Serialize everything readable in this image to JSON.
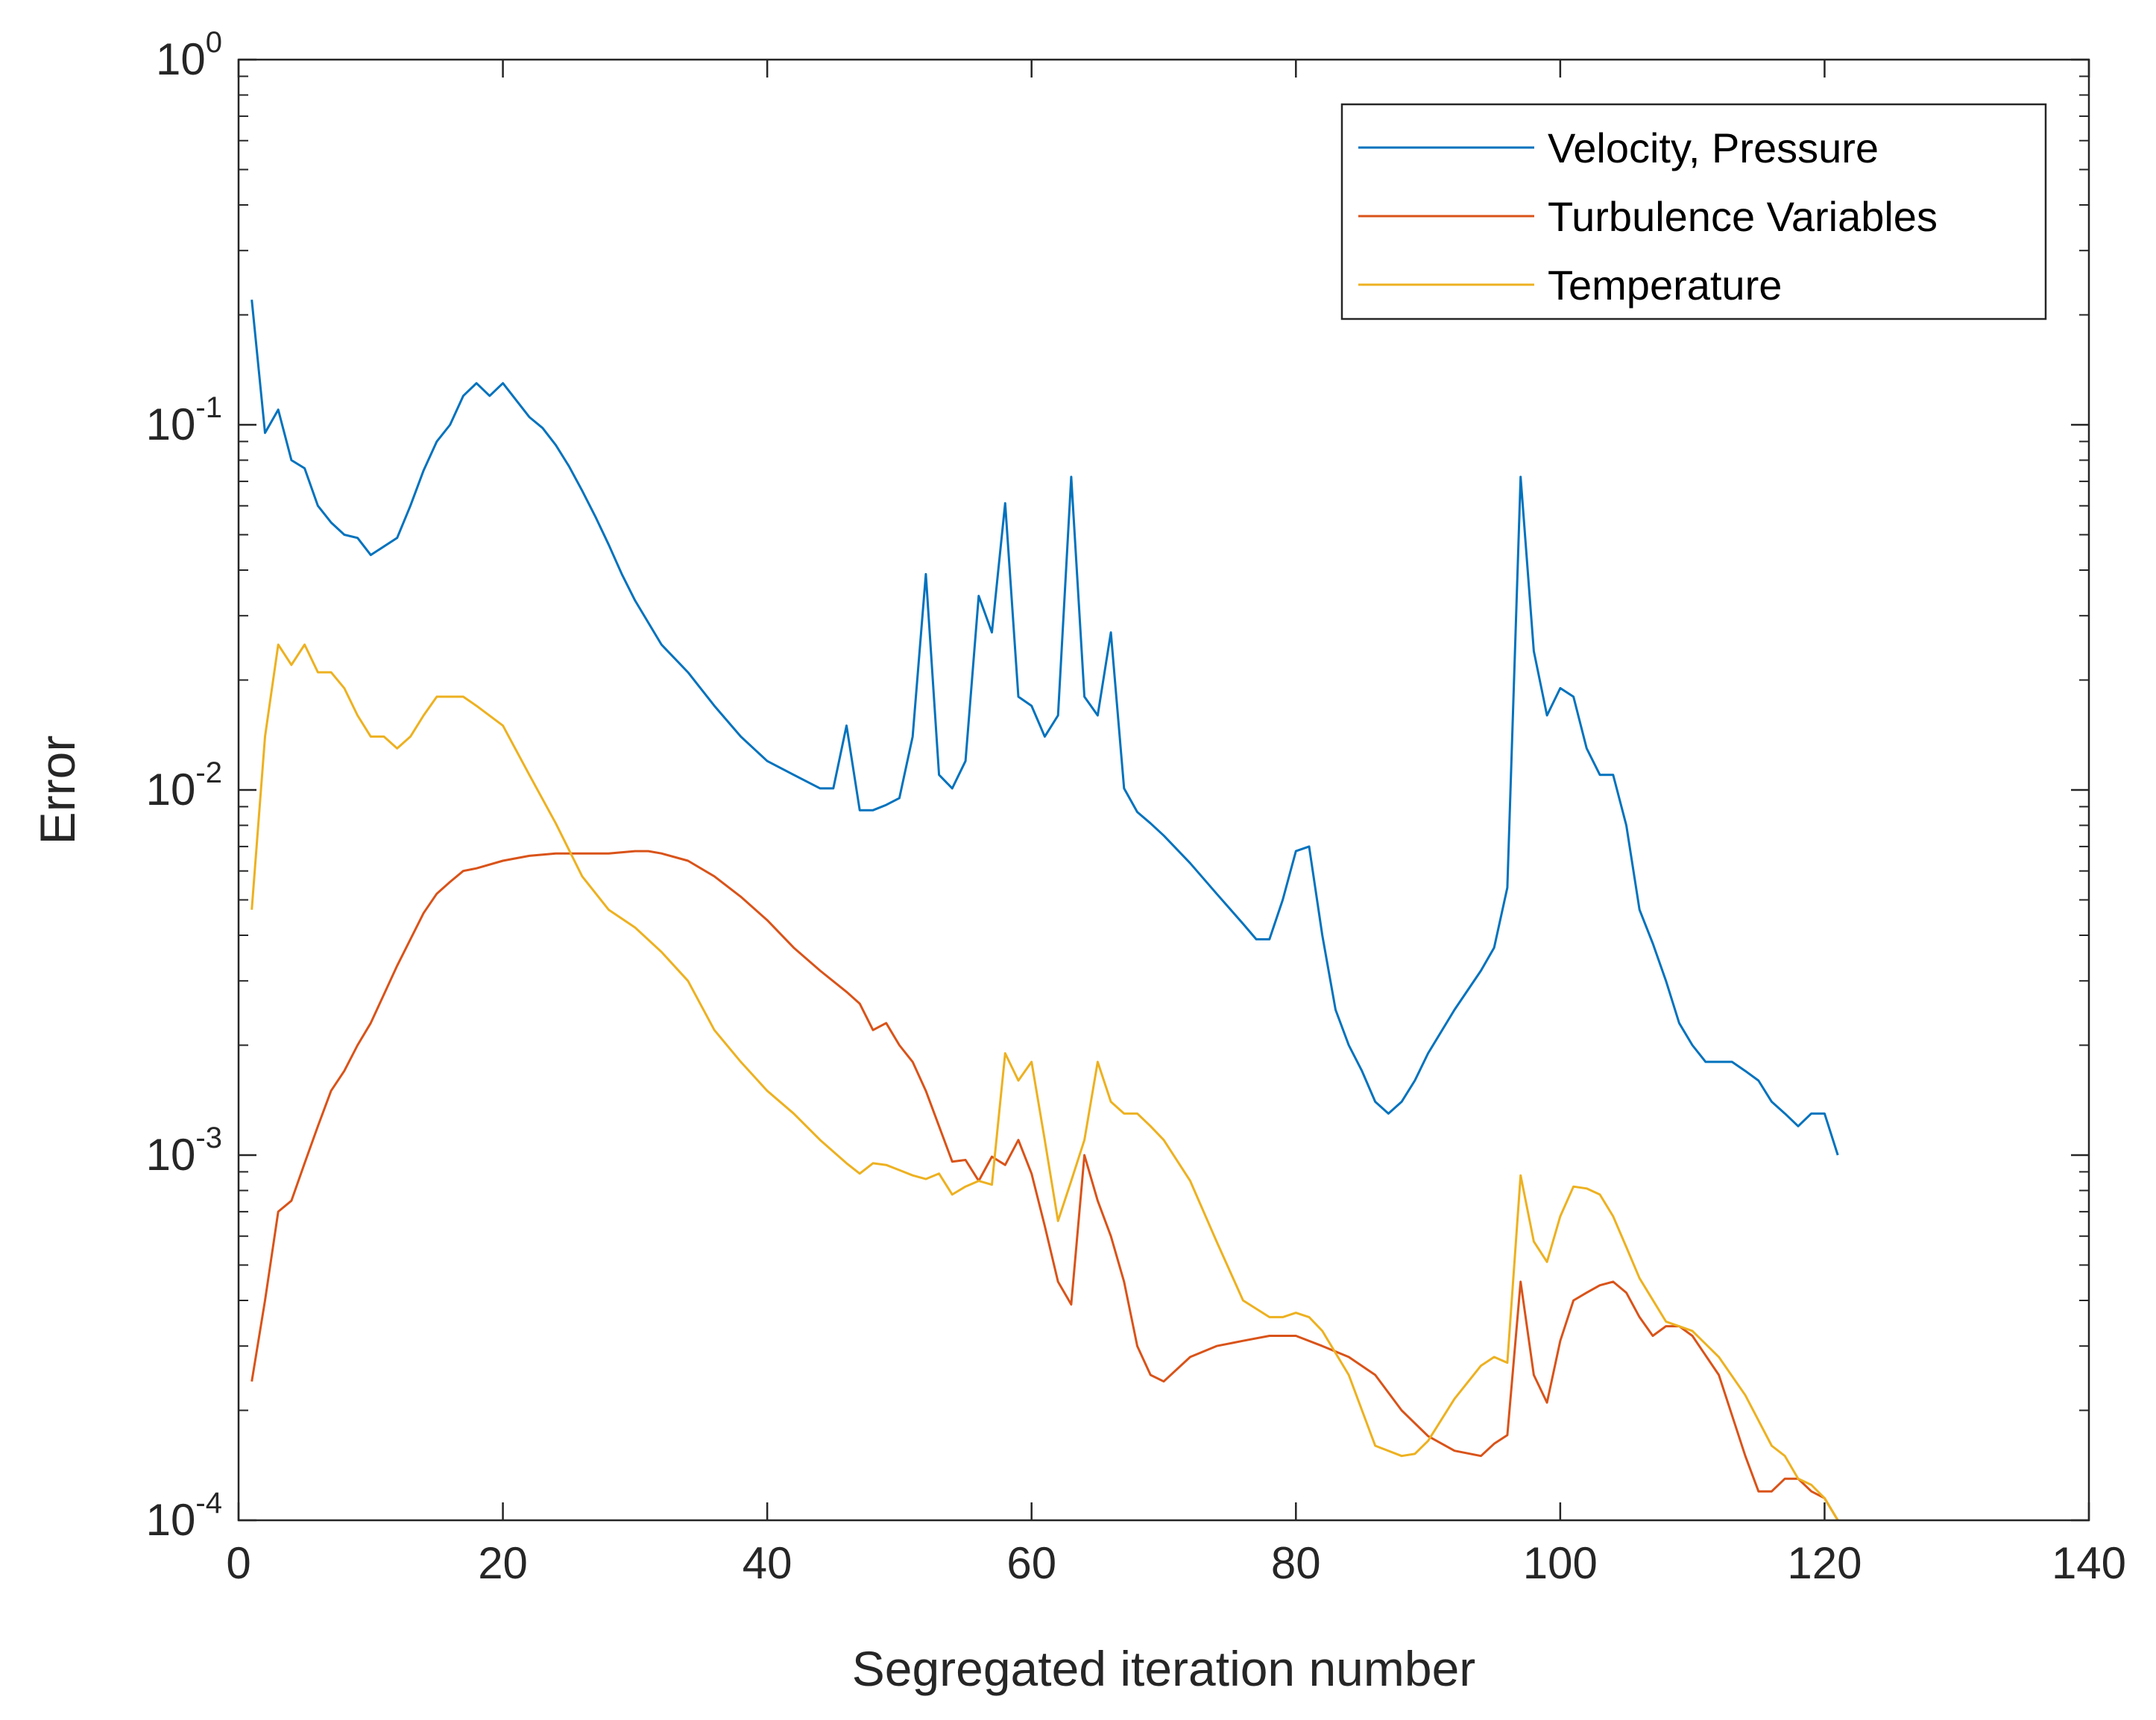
{
  "chart_data": {
    "type": "line",
    "title": "",
    "xlabel": "Segregated iteration number",
    "ylabel": "Error",
    "xlim": [
      0,
      140
    ],
    "ylim": [
      0.0001,
      1
    ],
    "yscale": "log",
    "x_ticks": [
      0,
      20,
      40,
      60,
      80,
      100,
      120,
      140
    ],
    "x_tick_labels": [
      "0",
      "20",
      "40",
      "60",
      "80",
      "100",
      "120",
      "140"
    ],
    "y_ticks": [
      0.0001,
      0.001,
      0.01,
      0.1,
      1
    ],
    "y_tick_labels": [
      {
        "base": "10",
        "exp": "-4"
      },
      {
        "base": "10",
        "exp": "-3"
      },
      {
        "base": "10",
        "exp": "-2"
      },
      {
        "base": "10",
        "exp": "-1"
      },
      {
        "base": "10",
        "exp": "0"
      }
    ],
    "legend_position": "top-right",
    "series": [
      {
        "name": "Velocity, Pressure",
        "color": "#0072BD",
        "x": [
          1,
          2,
          3,
          4,
          5,
          6,
          7,
          8,
          9,
          10,
          12,
          13,
          14,
          15,
          16,
          17,
          18,
          19,
          20,
          22,
          23,
          24,
          25,
          26,
          27,
          28,
          29,
          30,
          32,
          34,
          36,
          38,
          40,
          42,
          44,
          45,
          46,
          47,
          48,
          49,
          50,
          51,
          52,
          53,
          54,
          55,
          56,
          57,
          58,
          59,
          60,
          61,
          62,
          63,
          64,
          65,
          66,
          67,
          68,
          69,
          70,
          72,
          74,
          76,
          77,
          78,
          79,
          80,
          81,
          82,
          83,
          84,
          85,
          86,
          87,
          88,
          89,
          90,
          92,
          94,
          95,
          96,
          97,
          98,
          99,
          100,
          101,
          102,
          103,
          104,
          105,
          106,
          107,
          108,
          109,
          110,
          111,
          112,
          113,
          114,
          115,
          116,
          117,
          118,
          119,
          120,
          121
        ],
        "y": [
          0.22,
          0.095,
          0.11,
          0.08,
          0.076,
          0.06,
          0.054,
          0.05,
          0.049,
          0.044,
          0.049,
          0.06,
          0.075,
          0.09,
          0.1,
          0.12,
          0.13,
          0.12,
          0.13,
          0.105,
          0.098,
          0.088,
          0.077,
          0.066,
          0.056,
          0.047,
          0.039,
          0.033,
          0.025,
          0.021,
          0.017,
          0.014,
          0.012,
          0.011,
          0.0101,
          0.0101,
          0.015,
          0.0088,
          0.0088,
          0.0091,
          0.0095,
          0.014,
          0.039,
          0.011,
          0.0101,
          0.012,
          0.034,
          0.027,
          0.061,
          0.018,
          0.017,
          0.014,
          0.016,
          0.072,
          0.018,
          0.016,
          0.027,
          0.0101,
          0.0087,
          0.0081,
          0.0075,
          0.0063,
          0.0052,
          0.0043,
          0.0039,
          0.0039,
          0.005,
          0.0068,
          0.007,
          0.004,
          0.0025,
          0.002,
          0.0017,
          0.0014,
          0.0013,
          0.0014,
          0.0016,
          0.0019,
          0.0025,
          0.0032,
          0.0037,
          0.0054,
          0.072,
          0.024,
          0.016,
          0.019,
          0.018,
          0.013,
          0.011,
          0.011,
          0.008,
          0.0047,
          0.0038,
          0.003,
          0.0023,
          0.002,
          0.0018,
          0.0018,
          0.0018,
          0.0017,
          0.0016,
          0.0014,
          0.0013,
          0.0012,
          0.0013,
          0.0013,
          0.001
        ]
      },
      {
        "name": "Turbulence Variables",
        "color": "#D95319",
        "x": [
          1,
          2,
          3,
          4,
          5,
          6,
          7,
          8,
          9,
          10,
          12,
          14,
          15,
          16,
          17,
          18,
          20,
          22,
          24,
          26,
          28,
          30,
          31,
          32,
          34,
          36,
          38,
          40,
          42,
          44,
          46,
          47,
          48,
          49,
          50,
          51,
          52,
          53,
          54,
          55,
          56,
          57,
          58,
          59,
          60,
          61,
          62,
          63,
          64,
          65,
          66,
          67,
          68,
          69,
          70,
          72,
          74,
          76,
          78,
          80,
          82,
          84,
          86,
          88,
          90,
          92,
          94,
          95,
          96,
          97,
          98,
          99,
          100,
          101,
          102,
          103,
          104,
          105,
          106,
          107,
          108,
          109,
          110,
          112,
          114,
          115,
          116,
          117,
          118,
          119,
          120,
          121
        ],
        "y": [
          0.00024,
          0.0004,
          0.0007,
          0.00075,
          0.00095,
          0.0012,
          0.0015,
          0.0017,
          0.002,
          0.0023,
          0.0033,
          0.0046,
          0.0052,
          0.0056,
          0.006,
          0.0061,
          0.0064,
          0.0066,
          0.0067,
          0.0067,
          0.0067,
          0.0068,
          0.0068,
          0.0067,
          0.0064,
          0.0058,
          0.0051,
          0.0044,
          0.0037,
          0.0032,
          0.0028,
          0.0026,
          0.0022,
          0.0023,
          0.002,
          0.0018,
          0.0015,
          0.0012,
          0.00096,
          0.00097,
          0.00085,
          0.00099,
          0.00094,
          0.0011,
          0.00089,
          0.00064,
          0.00045,
          0.00039,
          0.001,
          0.00075,
          0.0006,
          0.00045,
          0.0003,
          0.00025,
          0.00024,
          0.00028,
          0.0003,
          0.00031,
          0.00032,
          0.00032,
          0.0003,
          0.00028,
          0.00025,
          0.0002,
          0.00017,
          0.000155,
          0.00015,
          0.000162,
          0.000171,
          0.00045,
          0.00025,
          0.00021,
          0.00031,
          0.0004,
          0.00042,
          0.00044,
          0.00045,
          0.00042,
          0.00036,
          0.00032,
          0.00034,
          0.00034,
          0.00032,
          0.00025,
          0.00015,
          0.00012,
          0.00012,
          0.00013,
          0.00013,
          0.00012,
          0.000115,
          0.0001
        ]
      },
      {
        "name": "Temperature",
        "color": "#EDB120",
        "x": [
          1,
          2,
          3,
          4,
          5,
          6,
          7,
          8,
          9,
          10,
          11,
          12,
          13,
          14,
          15,
          16,
          17,
          18,
          20,
          22,
          24,
          26,
          28,
          30,
          32,
          34,
          36,
          38,
          40,
          42,
          44,
          46,
          47,
          48,
          49,
          50,
          51,
          52,
          53,
          54,
          55,
          56,
          57,
          58,
          59,
          60,
          61,
          62,
          63,
          64,
          65,
          66,
          67,
          68,
          69,
          70,
          72,
          74,
          76,
          78,
          79,
          80,
          81,
          82,
          84,
          86,
          88,
          89,
          90,
          92,
          94,
          95,
          96,
          97,
          98,
          99,
          100,
          101,
          102,
          103,
          104,
          105,
          106,
          108,
          110,
          112,
          114,
          116,
          117,
          118,
          119,
          120,
          121
        ],
        "y": [
          0.0047,
          0.014,
          0.025,
          0.022,
          0.025,
          0.021,
          0.021,
          0.019,
          0.016,
          0.014,
          0.014,
          0.013,
          0.014,
          0.016,
          0.018,
          0.018,
          0.018,
          0.017,
          0.015,
          0.011,
          0.0081,
          0.0058,
          0.0047,
          0.0042,
          0.0036,
          0.003,
          0.0022,
          0.0018,
          0.0015,
          0.0013,
          0.0011,
          0.00095,
          0.00089,
          0.00095,
          0.00094,
          0.00091,
          0.00088,
          0.00086,
          0.00089,
          0.00078,
          0.00082,
          0.00085,
          0.00083,
          0.0019,
          0.0016,
          0.0018,
          0.0011,
          0.00066,
          0.00085,
          0.0011,
          0.0018,
          0.0014,
          0.0013,
          0.0013,
          0.0012,
          0.0011,
          0.00085,
          0.00058,
          0.0004,
          0.00036,
          0.00036,
          0.00037,
          0.00036,
          0.00033,
          0.00025,
          0.00016,
          0.00015,
          0.000152,
          0.000165,
          0.000215,
          0.000265,
          0.00028,
          0.00027,
          0.00088,
          0.00058,
          0.00051,
          0.00068,
          0.00082,
          0.00081,
          0.00078,
          0.00068,
          0.00056,
          0.00046,
          0.00035,
          0.00033,
          0.00028,
          0.00022,
          0.00016,
          0.00015,
          0.00013,
          0.000125,
          0.000115,
          0.0001
        ]
      }
    ]
  }
}
